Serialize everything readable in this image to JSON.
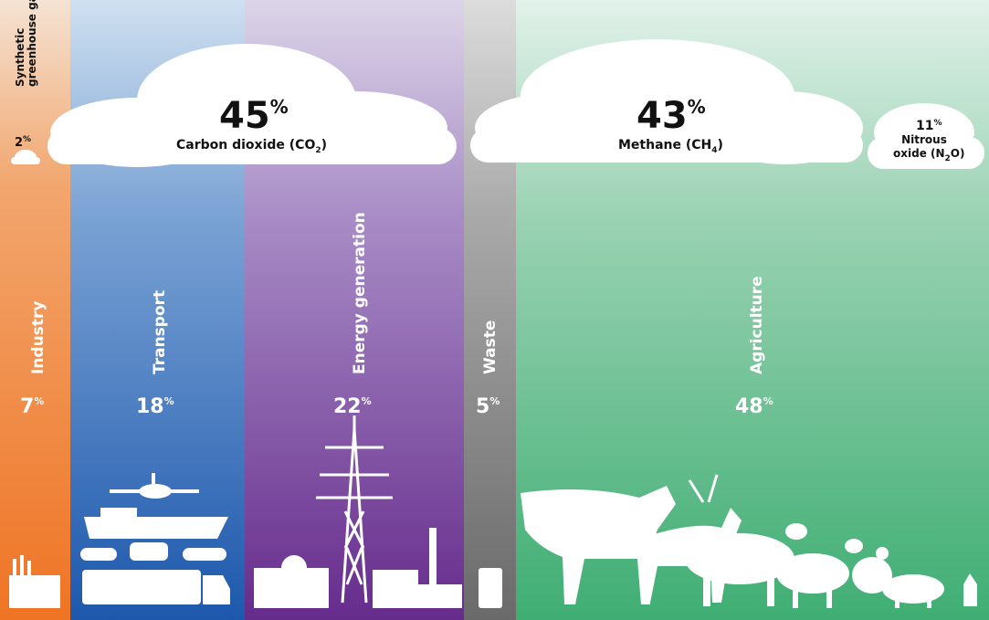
{
  "gases": [
    {
      "name": [
        "Synthetic",
        "greenhouse gases"
      ],
      "value": 2,
      "unit": "%"
    },
    {
      "name": [
        "Carbon dioxide (CO",
        "2",
        ")"
      ],
      "value": 45,
      "unit": "%"
    },
    {
      "name": [
        "Methane (CH",
        "4",
        ")"
      ],
      "value": 43,
      "unit": "%"
    },
    {
      "name": [
        "Nitrous",
        "oxide (N",
        "2",
        "O)"
      ],
      "value": 11,
      "unit": "%"
    }
  ],
  "sectors": [
    {
      "name": "Industry",
      "value": 7,
      "unit": "%"
    },
    {
      "name": "Transport",
      "value": 18,
      "unit": "%"
    },
    {
      "name": "Energy generation",
      "value": 22,
      "unit": "%"
    },
    {
      "name": "Waste",
      "value": 5,
      "unit": "%"
    },
    {
      "name": "Agriculture",
      "value": 48,
      "unit": "%"
    }
  ]
}
